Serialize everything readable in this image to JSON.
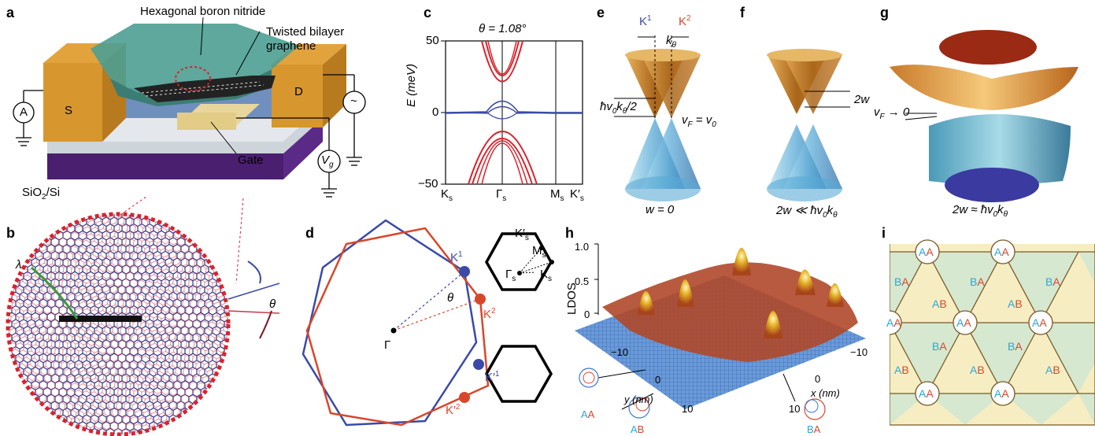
{
  "panels": {
    "a": "a",
    "b": "b",
    "c": "c",
    "d": "d",
    "e": "e",
    "f": "f",
    "g": "g",
    "h": "h",
    "i": "i"
  },
  "panel_a": {
    "hbn_label": "Hexagonal boron nitride",
    "tbg_label_1": "Twisted bilayer",
    "tbg_label_2": "graphene",
    "source": "S",
    "drain": "D",
    "ammeter": "A",
    "ac_source": "~",
    "gate_voltage": "V",
    "gate_voltage_sub": "g",
    "gate_label": "Gate",
    "substrate": "SiO",
    "substrate_sub": "2",
    "substrate_rest": "/Si"
  },
  "panel_b": {
    "lambda": "λ",
    "theta": "θ"
  },
  "panel_c": {
    "title": "θ = 1.08°",
    "ylabel": "E (meV)",
    "yticks": [
      "50",
      "0",
      "−50"
    ],
    "xticks": [
      "K",
      "Γ",
      "M",
      "K′"
    ],
    "xtick_sub": "s"
  },
  "panel_d": {
    "gamma": "Γ",
    "theta": "θ",
    "K1": "K",
    "K1_sup": "1",
    "K2": "K",
    "K2_sup": "2",
    "Kp1": "K′",
    "Kp1_sup": "1",
    "Kp2": "K′",
    "Kp2_sup": "2",
    "gamma_s": "Γ",
    "Ks": "K",
    "Ms": "M",
    "Kps": "K′",
    "sub": "s"
  },
  "panel_e": {
    "K1": "K",
    "K1_sup": "1",
    "K2": "K",
    "K2_sup": "2",
    "ktheta": "k",
    "ktheta_sub": "θ",
    "gap_label": "ħv",
    "gap_label_rest": "k",
    "gap_label_end": "/2",
    "vf": "v",
    "vf_sub": "F",
    "vf_rest": " = v",
    "vf_rest_sub": "0",
    "caption": "w = 0"
  },
  "panel_f": {
    "gap": "2w",
    "caption": "2w ≪ ħv",
    "caption_sub": "0",
    "caption_k": "k",
    "caption_k_sub": "θ"
  },
  "panel_g": {
    "vf": "v",
    "vf_sub": "F",
    "vf_rest": " → 0",
    "caption": "2w ≈ ħv",
    "caption_sub": "0",
    "caption_k": "k",
    "caption_k_sub": "θ"
  },
  "panel_h": {
    "ylabel": "LDOS",
    "zticks": [
      "1.0",
      "0.5",
      "0"
    ],
    "y_ticks": [
      "−10",
      "0",
      "10"
    ],
    "x_ticks": [
      "−10",
      "0",
      "10"
    ],
    "y_label": "y (nm)",
    "x_label": "x (nm)",
    "AA": "AA",
    "AB": "AB",
    "BA": "BA"
  },
  "panel_i": {
    "AA": "AA",
    "AB": "AB",
    "BA": "BA"
  },
  "colors": {
    "blue": "#3a4aa8",
    "red": "#d9472b",
    "cyan": "#2aa7d6",
    "gold": "#d8962e",
    "purple": "#5b2a86",
    "green_bg": "#d6e8cf",
    "yellow_bg": "#f6eec2"
  }
}
